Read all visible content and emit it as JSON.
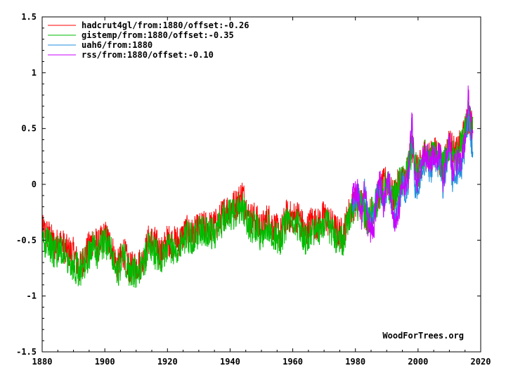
{
  "chart_data": {
    "type": "line",
    "title": "",
    "xlabel": "",
    "ylabel": "",
    "xlim": [
      1880,
      2020
    ],
    "ylim": [
      -1.5,
      1.5
    ],
    "grid": false,
    "legend_position": "top-left",
    "x_ticks": [
      "1880",
      "1900",
      "1920",
      "1940",
      "1960",
      "1980",
      "2000",
      "2020"
    ],
    "y_ticks": [
      "-1.5",
      "-1",
      "-0.5",
      "0",
      "0.5",
      "1",
      "1.5"
    ],
    "credit": "WoodForTrees.org",
    "series": [
      {
        "name": "hadcrut4gl/from:1880/offset:-0.26",
        "color": "#ff0000",
        "x": [
          1880,
          1882,
          1884,
          1886,
          1888,
          1890,
          1892,
          1894,
          1896,
          1898,
          1900,
          1902,
          1904,
          1906,
          1908,
          1910,
          1912,
          1914,
          1916,
          1918,
          1920,
          1922,
          1924,
          1926,
          1928,
          1930,
          1932,
          1934,
          1936,
          1938,
          1940,
          1942,
          1944,
          1946,
          1948,
          1950,
          1952,
          1954,
          1956,
          1958,
          1960,
          1962,
          1964,
          1966,
          1968,
          1970,
          1972,
          1974,
          1976,
          1978,
          1980,
          1982,
          1984,
          1986,
          1988,
          1990,
          1992,
          1994,
          1996,
          1998,
          2000,
          2002,
          2004,
          2006,
          2008,
          2010,
          2012,
          2014,
          2016,
          2017.5
        ],
        "y": [
          -0.42,
          -0.45,
          -0.55,
          -0.52,
          -0.6,
          -0.62,
          -0.75,
          -0.62,
          -0.5,
          -0.55,
          -0.46,
          -0.55,
          -0.74,
          -0.6,
          -0.76,
          -0.72,
          -0.7,
          -0.5,
          -0.52,
          -0.62,
          -0.5,
          -0.52,
          -0.5,
          -0.42,
          -0.45,
          -0.4,
          -0.38,
          -0.38,
          -0.35,
          -0.25,
          -0.2,
          -0.18,
          -0.08,
          -0.3,
          -0.3,
          -0.4,
          -0.3,
          -0.38,
          -0.45,
          -0.28,
          -0.3,
          -0.28,
          -0.45,
          -0.32,
          -0.36,
          -0.28,
          -0.35,
          -0.42,
          -0.45,
          -0.25,
          -0.16,
          -0.18,
          -0.3,
          -0.2,
          -0.05,
          0.04,
          -0.12,
          0.02,
          0.06,
          0.34,
          0.1,
          0.28,
          0.24,
          0.3,
          0.15,
          0.38,
          0.26,
          0.38,
          0.58,
          0.5
        ]
      },
      {
        "name": "gistemp/from:1880/offset:-0.35",
        "color": "#00bb00",
        "x": [
          1880,
          1882,
          1884,
          1886,
          1888,
          1890,
          1892,
          1894,
          1896,
          1898,
          1900,
          1902,
          1904,
          1906,
          1908,
          1910,
          1912,
          1914,
          1916,
          1918,
          1920,
          1922,
          1924,
          1926,
          1928,
          1930,
          1932,
          1934,
          1936,
          1938,
          1940,
          1942,
          1944,
          1946,
          1948,
          1950,
          1952,
          1954,
          1956,
          1958,
          1960,
          1962,
          1964,
          1966,
          1968,
          1970,
          1972,
          1974,
          1976,
          1978,
          1980,
          1982,
          1984,
          1986,
          1988,
          1990,
          1992,
          1994,
          1996,
          1998,
          2000,
          2002,
          2004,
          2006,
          2008,
          2010,
          2012,
          2014,
          2016,
          2017.5
        ],
        "y": [
          -0.5,
          -0.52,
          -0.62,
          -0.6,
          -0.64,
          -0.72,
          -0.78,
          -0.68,
          -0.56,
          -0.62,
          -0.5,
          -0.6,
          -0.8,
          -0.62,
          -0.82,
          -0.78,
          -0.74,
          -0.55,
          -0.62,
          -0.65,
          -0.55,
          -0.58,
          -0.54,
          -0.45,
          -0.5,
          -0.42,
          -0.4,
          -0.45,
          -0.4,
          -0.3,
          -0.28,
          -0.25,
          -0.18,
          -0.38,
          -0.38,
          -0.48,
          -0.36,
          -0.44,
          -0.5,
          -0.34,
          -0.38,
          -0.36,
          -0.5,
          -0.4,
          -0.42,
          -0.34,
          -0.4,
          -0.48,
          -0.5,
          -0.3,
          -0.2,
          -0.2,
          -0.32,
          -0.22,
          -0.08,
          0.02,
          -0.14,
          0.0,
          0.04,
          0.3,
          0.08,
          0.26,
          0.22,
          0.28,
          0.14,
          0.36,
          0.24,
          0.36,
          0.62,
          0.52
        ]
      },
      {
        "name": "uah6/from:1880",
        "color": "#1f8fdd",
        "x": [
          1979,
          1980,
          1981,
          1982,
          1983,
          1984,
          1985,
          1986,
          1987,
          1988,
          1989,
          1990,
          1991,
          1992,
          1993,
          1994,
          1995,
          1996,
          1997,
          1998,
          1999,
          2000,
          2001,
          2002,
          2003,
          2004,
          2005,
          2006,
          2007,
          2008,
          2009,
          2010,
          2011,
          2012,
          2013,
          2014,
          2015,
          2016,
          2017,
          2017.5
        ],
        "y": [
          -0.2,
          -0.12,
          -0.1,
          -0.28,
          -0.05,
          -0.32,
          -0.35,
          -0.28,
          -0.08,
          0.0,
          -0.22,
          -0.05,
          0.0,
          -0.3,
          -0.28,
          -0.18,
          0.0,
          -0.08,
          0.02,
          0.52,
          -0.02,
          -0.02,
          0.12,
          0.18,
          0.18,
          0.1,
          0.22,
          0.14,
          0.24,
          -0.06,
          0.18,
          0.34,
          0.02,
          0.08,
          0.12,
          0.16,
          0.3,
          0.62,
          0.36,
          0.3
        ]
      },
      {
        "name": "rss/from:1880/offset:-0.10",
        "color": "#cc00ff",
        "x": [
          1979,
          1980,
          1981,
          1982,
          1983,
          1984,
          1985,
          1986,
          1987,
          1988,
          1989,
          1990,
          1991,
          1992,
          1993,
          1994,
          1995,
          1996,
          1997,
          1998,
          1999,
          2000,
          2001,
          2002,
          2003,
          2004,
          2005,
          2006,
          2007,
          2008,
          2009,
          2010,
          2011,
          2012,
          2013,
          2014,
          2015,
          2016,
          2017,
          2017.5
        ],
        "y": [
          -0.12,
          -0.05,
          -0.08,
          -0.32,
          0.0,
          -0.35,
          -0.42,
          -0.38,
          -0.05,
          0.04,
          -0.18,
          -0.02,
          0.02,
          -0.32,
          -0.3,
          -0.2,
          0.04,
          -0.02,
          0.08,
          0.62,
          0.02,
          0.04,
          0.18,
          0.25,
          0.26,
          0.18,
          0.3,
          0.22,
          0.3,
          0.0,
          0.24,
          0.42,
          0.12,
          0.18,
          0.22,
          0.24,
          0.38,
          0.78,
          0.5,
          0.45
        ]
      }
    ]
  }
}
